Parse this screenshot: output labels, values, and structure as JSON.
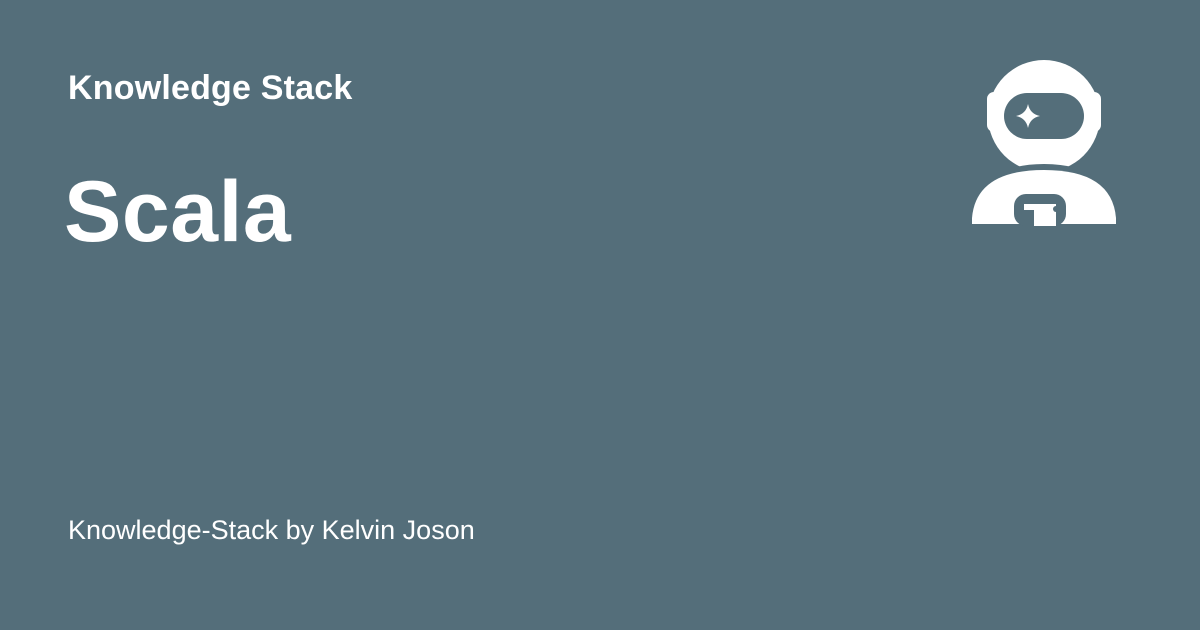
{
  "site": {
    "name": "Knowledge Stack"
  },
  "page": {
    "title": "Scala"
  },
  "footer": {
    "byline": "Knowledge-Stack by Kelvin Joson"
  },
  "logo": {
    "icon": "astronaut-icon"
  },
  "colors": {
    "background": "#546e7a",
    "foreground": "#ffffff"
  }
}
